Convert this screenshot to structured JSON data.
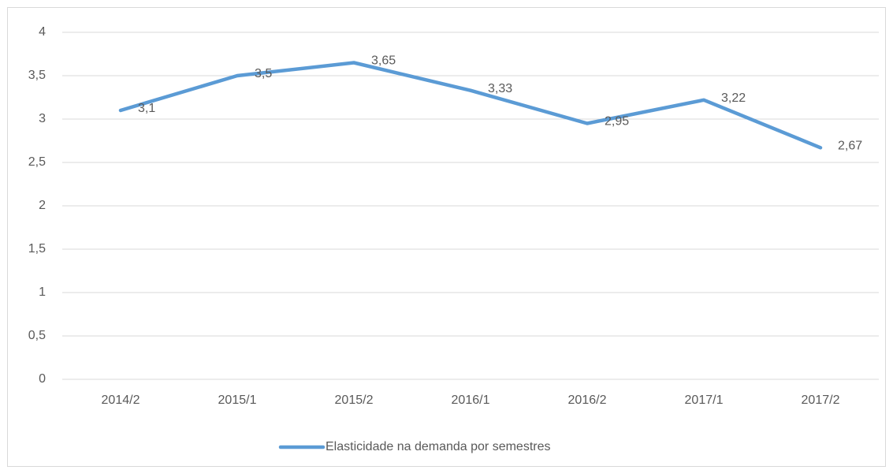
{
  "chart_data": {
    "type": "line",
    "categories": [
      "2014/2",
      "2015/1",
      "2015/2",
      "2016/1",
      "2016/2",
      "2017/1",
      "2017/2"
    ],
    "series": [
      {
        "name": "Elasticidade na demanda por semestres",
        "color": "#5b9bd5",
        "values": [
          3.1,
          3.5,
          3.65,
          3.33,
          2.95,
          3.22,
          2.67
        ],
        "value_labels": [
          "3,1",
          "3,5",
          "3,65",
          "3,33",
          "2,95",
          "3,22",
          "2,67"
        ]
      }
    ],
    "ylim": [
      0,
      4
    ],
    "yticks": [
      0,
      {
        "value": 0.5,
        "label": "0,5"
      },
      1,
      {
        "value": 1.5,
        "label": "1,5"
      },
      2,
      {
        "value": 2.5,
        "label": "2,5"
      },
      3,
      {
        "value": 3.5,
        "label": "3,5"
      },
      4
    ],
    "grid": true,
    "legend": "bottom"
  }
}
